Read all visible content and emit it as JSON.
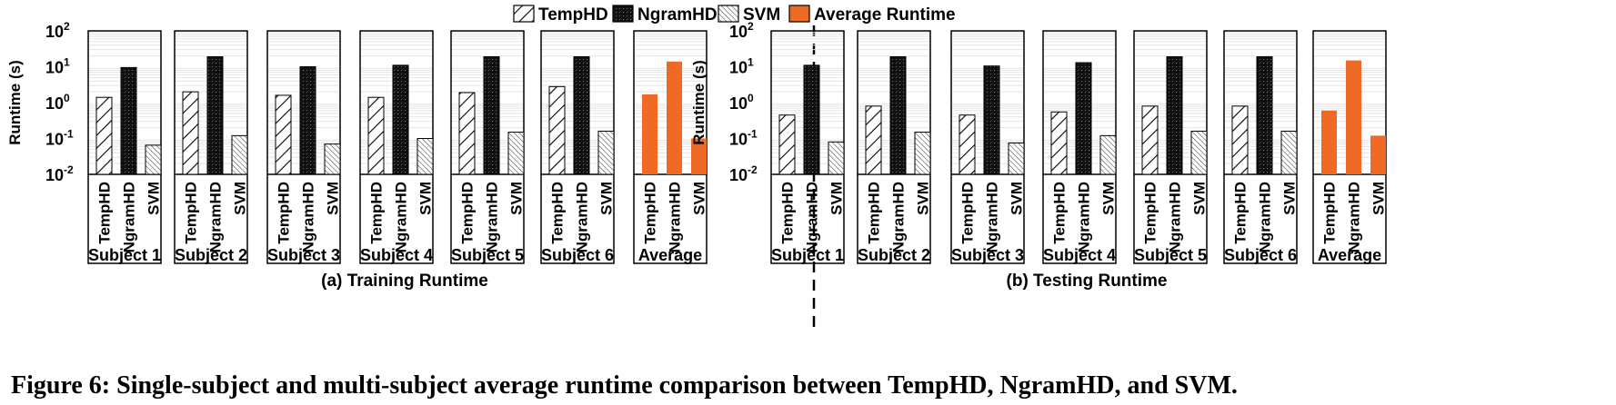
{
  "chart_data": [
    {
      "type": "bar",
      "subtitle": "(a) Training Runtime",
      "ylabel": "Runtime (s)",
      "yscale": "log",
      "ylim": [
        0.01,
        100
      ],
      "yticks": [
        0.01,
        0.1,
        1,
        10,
        100
      ],
      "categories": [
        "Subject 1",
        "Subject 2",
        "Subject 3",
        "Subject 4",
        "Subject 5",
        "Subject 6",
        "Average"
      ],
      "bar_labels": [
        "TempHD",
        "NgramHD",
        "SVM"
      ],
      "series": [
        {
          "name": "TempHD",
          "values": [
            1.4,
            2.0,
            1.6,
            1.4,
            1.9,
            2.8,
            1.7
          ]
        },
        {
          "name": "NgramHD",
          "values": [
            9.5,
            19,
            10,
            11,
            19,
            19,
            14
          ]
        },
        {
          "name": "SVM",
          "values": [
            0.065,
            0.12,
            0.07,
            0.1,
            0.15,
            0.16,
            0.1
          ]
        }
      ]
    },
    {
      "type": "bar",
      "subtitle": "(b) Testing Runtime",
      "ylabel": "Runtime (s)",
      "yscale": "log",
      "ylim": [
        0.01,
        100
      ],
      "yticks": [
        0.01,
        0.1,
        1,
        10,
        100
      ],
      "categories": [
        "Subject 1",
        "Subject 2",
        "Subject 3",
        "Subject 4",
        "Subject 5",
        "Subject 6",
        "Average"
      ],
      "bar_labels": [
        "TempHD",
        "NgramHD",
        "SVM"
      ],
      "series": [
        {
          "name": "TempHD",
          "values": [
            0.45,
            0.8,
            0.45,
            0.55,
            0.8,
            0.8,
            0.6
          ]
        },
        {
          "name": "NgramHD",
          "values": [
            11,
            19,
            10.5,
            13,
            19,
            19,
            15
          ]
        },
        {
          "name": "SVM",
          "values": [
            0.08,
            0.15,
            0.075,
            0.12,
            0.16,
            0.16,
            0.12
          ]
        }
      ]
    }
  ],
  "legend": {
    "position": "top-center",
    "items": [
      {
        "label": "TempHD",
        "fill": "hatch-back"
      },
      {
        "label": "NgramHD",
        "fill": "black"
      },
      {
        "label": "SVM",
        "fill": "hatch-fine"
      },
      {
        "label": "Average Runtime",
        "fill": "orange"
      }
    ]
  },
  "colors": {
    "average": "#ee6a25",
    "ngram": "#111111",
    "frame": "#000000"
  },
  "caption": "Figure 6: Single-subject and multi-subject average runtime comparison between TempHD, NgramHD, and SVM."
}
